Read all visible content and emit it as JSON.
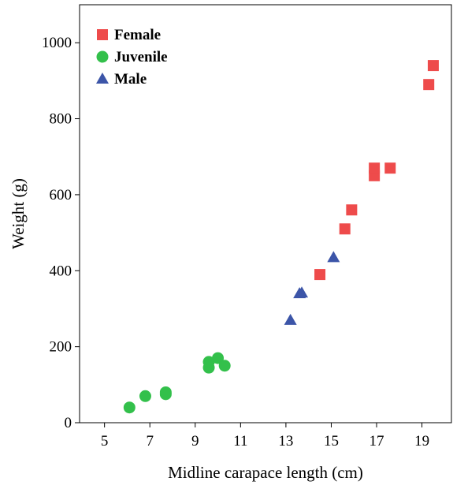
{
  "chart_data": {
    "type": "scatter",
    "title": "",
    "xlabel": "Midline carapace length (cm)",
    "ylabel": "Weight (g)",
    "xlim": [
      3.9,
      20.3
    ],
    "ylim": [
      0,
      1100
    ],
    "xticks": [
      5,
      7,
      9,
      11,
      13,
      15,
      17,
      19
    ],
    "yticks": [
      0,
      200,
      400,
      600,
      800,
      1000
    ],
    "grid": false,
    "legend_position": "top-left",
    "series": [
      {
        "name": "Female",
        "marker": "square",
        "color": "#ee4b4b",
        "points": [
          {
            "x": 14.5,
            "y": 390
          },
          {
            "x": 15.6,
            "y": 510
          },
          {
            "x": 15.9,
            "y": 560
          },
          {
            "x": 16.9,
            "y": 650
          },
          {
            "x": 16.9,
            "y": 670
          },
          {
            "x": 17.6,
            "y": 670
          },
          {
            "x": 19.3,
            "y": 890
          },
          {
            "x": 19.5,
            "y": 940
          }
        ]
      },
      {
        "name": "Juvenile",
        "marker": "circle",
        "color": "#33c04b",
        "points": [
          {
            "x": 6.1,
            "y": 40
          },
          {
            "x": 6.8,
            "y": 70
          },
          {
            "x": 7.7,
            "y": 75
          },
          {
            "x": 7.7,
            "y": 80
          },
          {
            "x": 9.6,
            "y": 145
          },
          {
            "x": 9.6,
            "y": 160
          },
          {
            "x": 10.0,
            "y": 170
          },
          {
            "x": 10.3,
            "y": 150
          }
        ]
      },
      {
        "name": "Male",
        "marker": "triangle",
        "color": "#3c55a8",
        "points": [
          {
            "x": 13.2,
            "y": 270
          },
          {
            "x": 13.6,
            "y": 340
          },
          {
            "x": 13.7,
            "y": 342
          },
          {
            "x": 15.1,
            "y": 435
          }
        ]
      }
    ]
  }
}
